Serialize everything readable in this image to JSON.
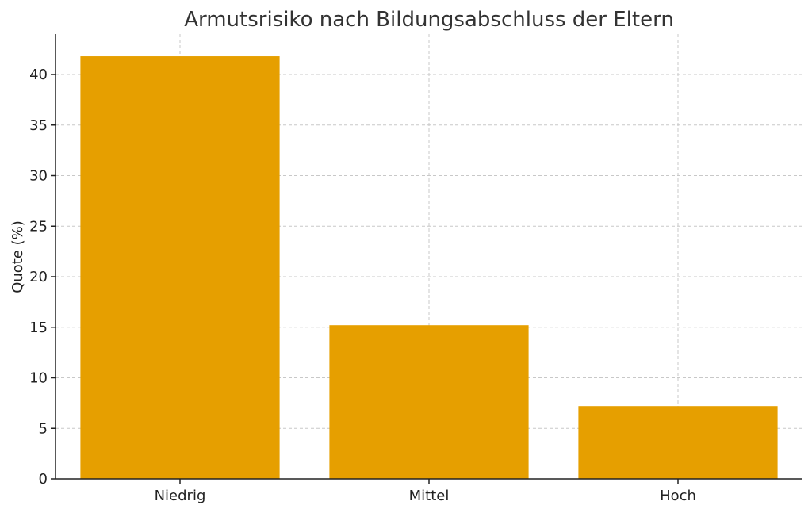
{
  "chart_data": {
    "type": "bar",
    "title": "Armutsrisiko nach Bildungsabschluss der Eltern",
    "xlabel": "",
    "ylabel": "Quote (%)",
    "categories": [
      "Niedrig",
      "Mittel",
      "Hoch"
    ],
    "values": [
      41.8,
      15.2,
      7.2
    ],
    "ylim": [
      0,
      44
    ],
    "yticks": [
      0,
      5,
      10,
      15,
      20,
      25,
      30,
      35,
      40
    ],
    "grid": true,
    "bar_color": "#E69F00"
  }
}
